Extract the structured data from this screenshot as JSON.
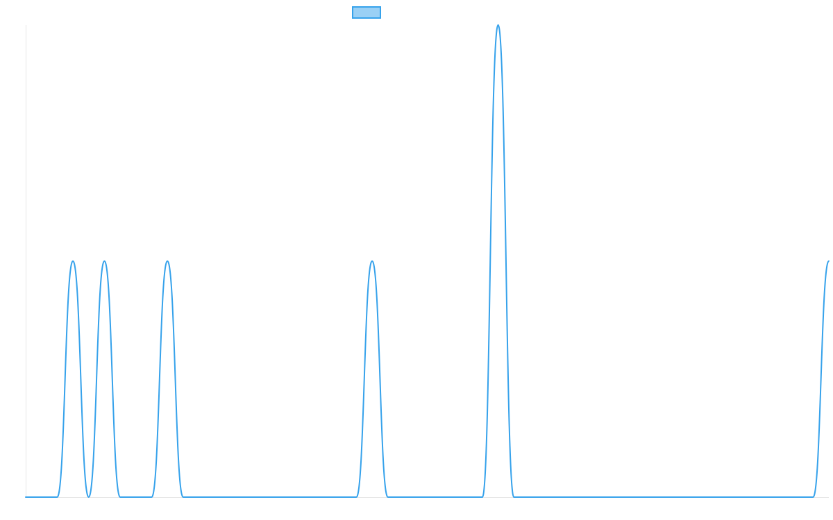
{
  "chart_data": {
    "type": "line",
    "x": [
      0,
      1,
      2,
      3,
      4,
      5,
      6,
      7,
      8,
      9,
      10,
      11,
      12,
      13,
      14,
      15,
      16,
      17,
      18,
      19,
      20,
      21,
      22,
      23,
      24,
      25,
      26,
      27,
      28,
      29,
      30,
      31,
      32,
      33,
      34,
      35,
      36,
      37,
      38,
      39,
      40,
      41,
      42,
      43,
      44,
      45,
      46,
      47,
      48,
      49,
      50,
      51
    ],
    "series": [
      {
        "name": "",
        "values": [
          0,
          0,
          0,
          1,
          0,
          1,
          0,
          0,
          0,
          1,
          0,
          0,
          0,
          0,
          0,
          0,
          0,
          0,
          0,
          0,
          0,
          0,
          1,
          0,
          0,
          0,
          0,
          0,
          0,
          0,
          2,
          0,
          0,
          0,
          0,
          0,
          0,
          0,
          0,
          0,
          0,
          0,
          0,
          0,
          0,
          0,
          0,
          0,
          0,
          0,
          0,
          1
        ]
      }
    ],
    "ylim": [
      0,
      2
    ],
    "grid": false,
    "legend_position": "top-center",
    "colors": {
      "line": "#36a2eb",
      "legend_fill": "#9ad0f5",
      "axis": "#e6e6e6"
    }
  }
}
